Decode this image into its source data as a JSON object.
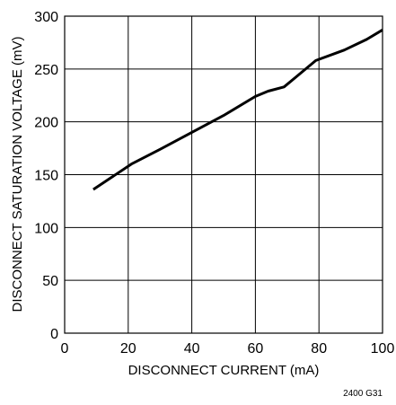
{
  "chart_data": {
    "type": "line",
    "xlabel": "DISCONNECT CURRENT (mA)",
    "ylabel": "DISCONNECT SATURATION VOLTAGE (mV)",
    "xlim": [
      0,
      100
    ],
    "ylim": [
      0,
      300
    ],
    "x_ticks": [
      "0",
      "20",
      "40",
      "60",
      "80",
      "100"
    ],
    "y_ticks": [
      "0",
      "50",
      "100",
      "150",
      "200",
      "250",
      "300"
    ],
    "grid": true,
    "series": [
      {
        "x": [
          9,
          15,
          21,
          30,
          40,
          50,
          60,
          64,
          69,
          73,
          79,
          88,
          95,
          100
        ],
        "y": [
          136,
          148,
          160,
          174,
          190,
          206,
          224,
          229,
          233,
          243,
          258,
          268,
          278,
          287
        ],
        "color": "#000000"
      }
    ]
  },
  "figure_code": "2400 G31"
}
